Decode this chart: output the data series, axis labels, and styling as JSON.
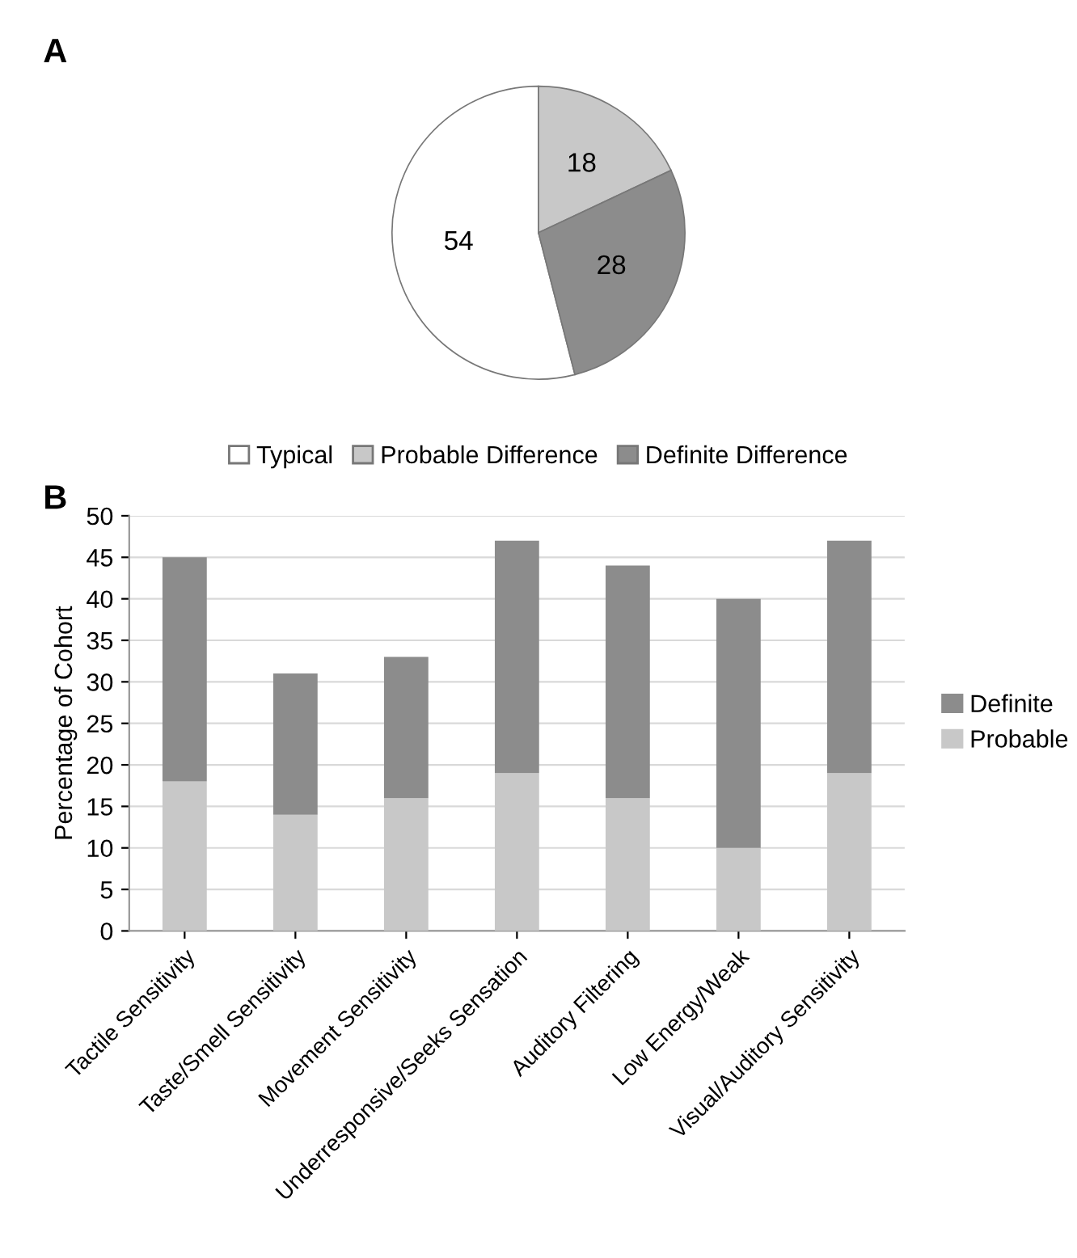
{
  "chart_data": [
    {
      "type": "pie",
      "title": "A",
      "categories": [
        "Typical",
        "Probable Difference",
        "Definite Difference"
      ],
      "values": [
        54,
        18,
        28
      ],
      "colors": [
        "#ffffff",
        "#c8c8c8",
        "#8c8c8c"
      ],
      "data_labels": true,
      "legend": "bottom"
    },
    {
      "type": "bar",
      "title": "B",
      "ylabel": "Percentage of Cohort",
      "stacked": true,
      "categories": [
        "Tactile Sensitivity",
        "Taste/Smell Sensitivity",
        "Movement Sensitivity",
        "Underresponsive/Seeks Sensation",
        "Auditory Filtering",
        "Low Energy/Weak",
        "Visual/Auditory Sensitivity"
      ],
      "series": [
        {
          "name": "Probable",
          "color": "#c8c8c8",
          "values": [
            18,
            14,
            16,
            19,
            16,
            10,
            19
          ]
        },
        {
          "name": "Definite",
          "color": "#8c8c8c",
          "values": [
            27,
            17,
            17,
            28,
            28,
            30,
            28
          ]
        }
      ],
      "ylim": [
        0,
        50
      ],
      "yticks": [
        0,
        5,
        10,
        15,
        20,
        25,
        30,
        35,
        40,
        45,
        50
      ],
      "grid": "y",
      "legend": "right"
    }
  ]
}
